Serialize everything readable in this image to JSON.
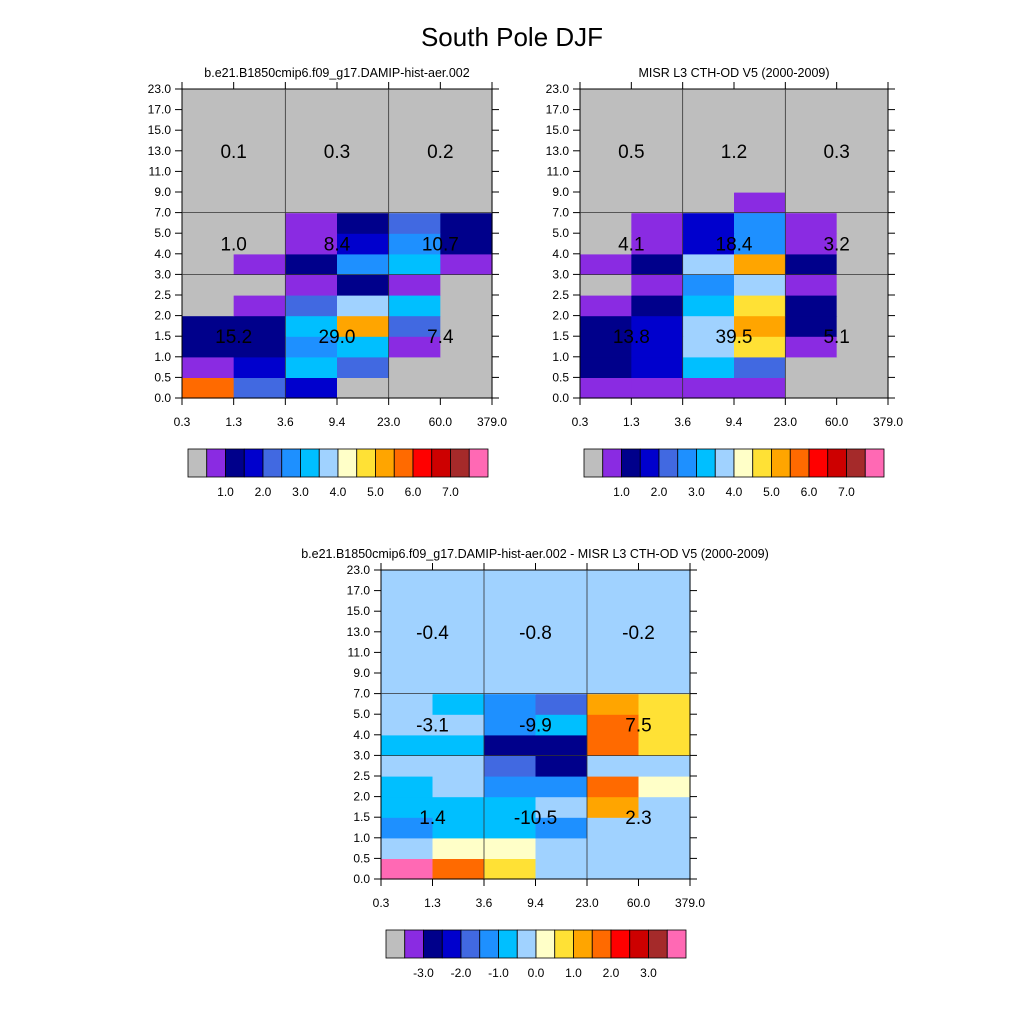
{
  "main_title": "South Pole DJF",
  "x_ticks": [
    "0.3",
    "1.3",
    "3.6",
    "9.4",
    "23.0",
    "60.0",
    "379.0"
  ],
  "y_ticks": [
    "0.0",
    "0.5",
    "1.0",
    "1.5",
    "2.0",
    "2.5",
    "3.0",
    "4.0",
    "5.0",
    "7.0",
    "9.0",
    "11.0",
    "13.0",
    "15.0",
    "17.0",
    "23.0"
  ],
  "palette": [
    "#bebebe",
    "#8a2be2",
    "#00008b",
    "#0000cd",
    "#4169e1",
    "#1e90ff",
    "#00bfff",
    "#a0d2ff",
    "#ffffc8",
    "#ffe135",
    "#ffa500",
    "#ff6a00",
    "#ff0000",
    "#cd0000",
    "#a52a2a",
    "#ff69b4"
  ],
  "chart_data": [
    {
      "type": "heatmap",
      "title": "b.e21.B1850cmip6.f09_g17.DAMIP-hist-aer.002",
      "x_edges": [
        0.3,
        1.3,
        3.6,
        9.4,
        23.0,
        60.0,
        379.0
      ],
      "y_edges": [
        0.0,
        0.5,
        1.0,
        1.5,
        2.0,
        2.5,
        3.0,
        4.0,
        5.0,
        7.0,
        9.0,
        11.0,
        13.0,
        15.0,
        17.0,
        23.0
      ],
      "cells": [
        [
          11,
          4,
          3,
          0,
          0,
          0
        ],
        [
          1,
          3,
          6,
          4,
          0,
          0
        ],
        [
          2,
          2,
          5,
          6,
          1,
          0
        ],
        [
          2,
          2,
          6,
          10,
          4,
          0
        ],
        [
          0,
          1,
          4,
          7,
          6,
          0
        ],
        [
          0,
          0,
          1,
          2,
          1,
          0
        ],
        [
          0,
          1,
          2,
          5,
          6,
          1
        ],
        [
          0,
          0,
          1,
          3,
          5,
          2
        ],
        [
          0,
          0,
          1,
          2,
          4,
          2
        ],
        [
          0,
          0,
          0,
          0,
          0,
          0
        ],
        [
          0,
          0,
          0,
          0,
          0,
          0
        ],
        [
          0,
          0,
          0,
          0,
          0,
          0
        ],
        [
          0,
          0,
          0,
          0,
          0,
          0
        ],
        [
          0,
          0,
          0,
          0,
          0,
          0
        ],
        [
          0,
          0,
          0,
          0,
          0,
          0
        ]
      ],
      "group_values": [
        {
          "text": "15.2",
          "x": 0.6,
          "y": 1.5
        },
        {
          "text": "29.0",
          "x": 5.0,
          "y": 1.5
        },
        {
          "text": "7.4",
          "x": 130,
          "y": 1.5
        },
        {
          "text": "1.0",
          "x": 0.6,
          "y": 4.5
        },
        {
          "text": "8.4",
          "x": 5.0,
          "y": 4.5
        },
        {
          "text": "10.7",
          "x": 130,
          "y": 4.5
        },
        {
          "text": "0.1",
          "x": 0.6,
          "y": 13.0
        },
        {
          "text": "0.3",
          "x": 5.0,
          "y": 13.0
        },
        {
          "text": "0.2",
          "x": 130,
          "y": 13.0
        }
      ],
      "colorbar": {
        "labels": [
          "1.0",
          "2.0",
          "3.0",
          "4.0",
          "5.0",
          "6.0",
          "7.0"
        ]
      }
    },
    {
      "type": "heatmap",
      "title": "MISR L3 CTH-OD V5 (2000-2009)",
      "x_edges": [
        0.3,
        1.3,
        3.6,
        9.4,
        23.0,
        60.0,
        379.0
      ],
      "y_edges": [
        0.0,
        0.5,
        1.0,
        1.5,
        2.0,
        2.5,
        3.0,
        4.0,
        5.0,
        7.0,
        9.0,
        11.0,
        13.0,
        15.0,
        17.0,
        23.0
      ],
      "cells": [
        [
          1,
          1,
          1,
          1,
          0,
          0
        ],
        [
          2,
          3,
          6,
          4,
          0,
          0
        ],
        [
          2,
          3,
          7,
          9,
          1,
          0
        ],
        [
          2,
          3,
          7,
          10,
          2,
          0
        ],
        [
          1,
          2,
          6,
          9,
          2,
          0
        ],
        [
          0,
          1,
          5,
          7,
          1,
          0
        ],
        [
          1,
          2,
          7,
          10,
          2,
          0
        ],
        [
          0,
          1,
          3,
          5,
          1,
          0
        ],
        [
          0,
          1,
          3,
          5,
          1,
          0
        ],
        [
          0,
          0,
          0,
          1,
          0,
          0
        ],
        [
          0,
          0,
          0,
          0,
          0,
          0
        ],
        [
          0,
          0,
          0,
          0,
          0,
          0
        ],
        [
          0,
          0,
          0,
          0,
          0,
          0
        ],
        [
          0,
          0,
          0,
          0,
          0,
          0
        ],
        [
          0,
          0,
          0,
          0,
          0,
          0
        ]
      ],
      "group_values": [
        {
          "text": "13.8",
          "x": 0.6,
          "y": 1.5
        },
        {
          "text": "39.5",
          "x": 5.0,
          "y": 1.5
        },
        {
          "text": "5.1",
          "x": 130,
          "y": 1.5
        },
        {
          "text": "4.1",
          "x": 0.6,
          "y": 4.5
        },
        {
          "text": "18.4",
          "x": 5.0,
          "y": 4.5
        },
        {
          "text": "3.2",
          "x": 130,
          "y": 4.5
        },
        {
          "text": "0.5",
          "x": 0.6,
          "y": 13.0
        },
        {
          "text": "1.2",
          "x": 5.0,
          "y": 13.0
        },
        {
          "text": "0.3",
          "x": 130,
          "y": 13.0
        }
      ],
      "colorbar": {
        "labels": [
          "1.0",
          "2.0",
          "3.0",
          "4.0",
          "5.0",
          "6.0",
          "7.0"
        ]
      }
    },
    {
      "type": "heatmap",
      "title": "b.e21.B1850cmip6.f09_g17.DAMIP-hist-aer.002 - MISR L3 CTH-OD V5 (2000-2009)",
      "x_edges": [
        0.3,
        1.3,
        3.6,
        9.4,
        23.0,
        60.0,
        379.0
      ],
      "y_edges": [
        0.0,
        0.5,
        1.0,
        1.5,
        2.0,
        2.5,
        3.0,
        4.0,
        5.0,
        7.0,
        9.0,
        11.0,
        13.0,
        15.0,
        17.0,
        23.0
      ],
      "cells": [
        [
          15,
          11,
          9,
          7,
          7,
          7
        ],
        [
          7,
          8,
          8,
          7,
          7,
          7
        ],
        [
          5,
          6,
          6,
          5,
          7,
          7
        ],
        [
          6,
          6,
          6,
          7,
          10,
          7
        ],
        [
          6,
          7,
          5,
          5,
          11,
          8
        ],
        [
          7,
          7,
          4,
          2,
          7,
          7
        ],
        [
          6,
          6,
          2,
          2,
          11,
          9
        ],
        [
          7,
          7,
          5,
          6,
          11,
          9
        ],
        [
          7,
          6,
          5,
          4,
          10,
          9
        ],
        [
          7,
          7,
          7,
          7,
          7,
          7
        ],
        [
          7,
          7,
          7,
          7,
          7,
          7
        ],
        [
          7,
          7,
          7,
          7,
          7,
          7
        ],
        [
          7,
          7,
          7,
          7,
          7,
          7
        ],
        [
          7,
          7,
          7,
          7,
          7,
          7
        ],
        [
          7,
          7,
          7,
          7,
          7,
          7
        ]
      ],
      "group_values": [
        {
          "text": "1.4",
          "x": 0.6,
          "y": 1.5
        },
        {
          "text": "-10.5",
          "x": 5.0,
          "y": 1.5
        },
        {
          "text": "2.3",
          "x": 130,
          "y": 1.5
        },
        {
          "text": "-3.1",
          "x": 0.6,
          "y": 4.5
        },
        {
          "text": "-9.9",
          "x": 5.0,
          "y": 4.5
        },
        {
          "text": "7.5",
          "x": 130,
          "y": 4.5
        },
        {
          "text": "-0.4",
          "x": 0.6,
          "y": 13.0
        },
        {
          "text": "-0.8",
          "x": 5.0,
          "y": 13.0
        },
        {
          "text": "-0.2",
          "x": 130,
          "y": 13.0
        }
      ],
      "colorbar": {
        "labels": [
          "-3.0",
          "-2.0",
          "-1.0",
          "0.0",
          "1.0",
          "2.0",
          "3.0"
        ]
      }
    }
  ]
}
